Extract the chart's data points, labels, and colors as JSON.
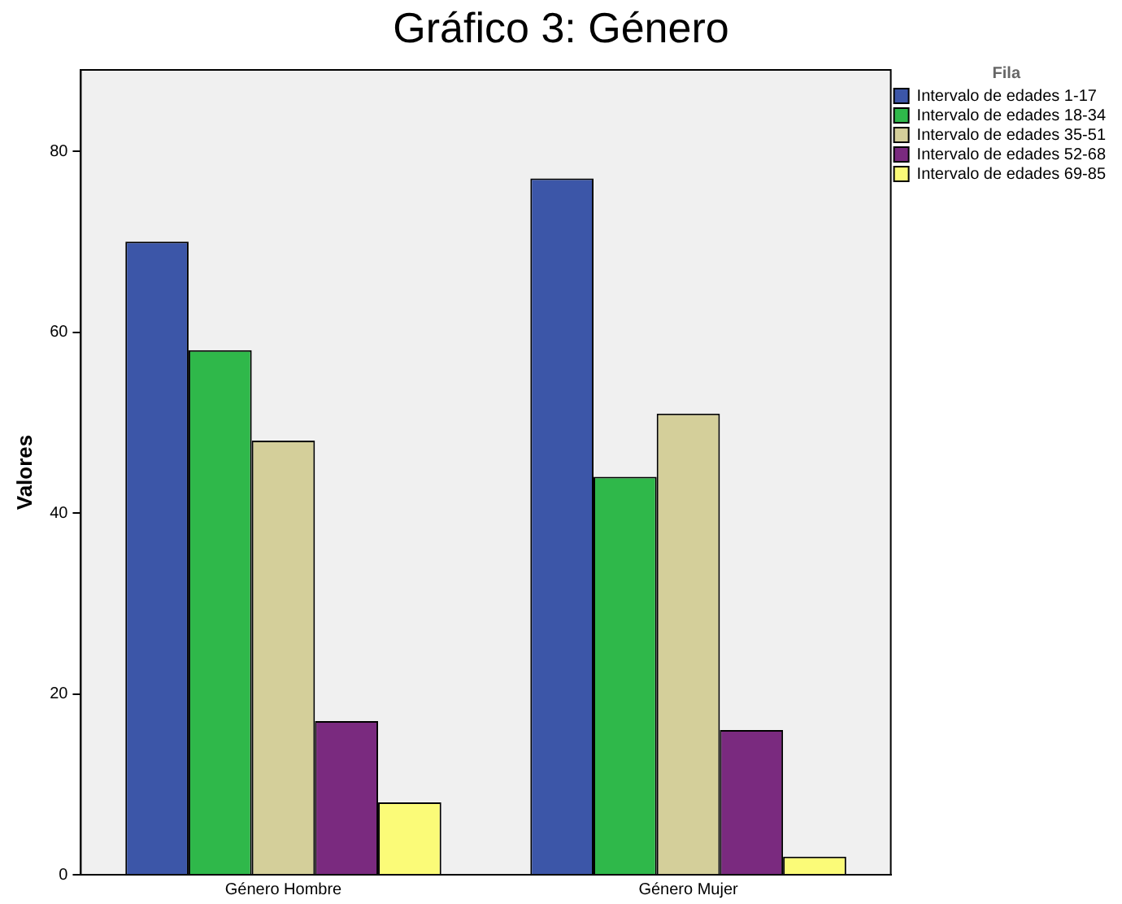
{
  "chart_data": {
    "type": "bar",
    "title": "Gráfico 3: Género",
    "ylabel": "Valores",
    "legend_title": "Fila",
    "legend": "top right",
    "grid": false,
    "categories": [
      "Género Hombre",
      "Género Mujer"
    ],
    "series": [
      {
        "name": "Intervalo de edades 1-17",
        "color": "#3c56a8",
        "values": [
          70,
          77
        ]
      },
      {
        "name": "Intervalo de edades 18-34",
        "color": "#2fb84a",
        "values": [
          58,
          44
        ]
      },
      {
        "name": "Intervalo de edades 35-51",
        "color": "#d4cf9a",
        "values": [
          48,
          51
        ]
      },
      {
        "name": "Intervalo de edades 52-68",
        "color": "#7a2a7f",
        "values": [
          17,
          16
        ]
      },
      {
        "name": "Intervalo de edades 69-85",
        "color": "#fbfb78",
        "values": [
          8,
          2
        ]
      }
    ],
    "ylim": [
      0,
      89
    ],
    "yticks": [
      0,
      20,
      40,
      60,
      80
    ]
  }
}
